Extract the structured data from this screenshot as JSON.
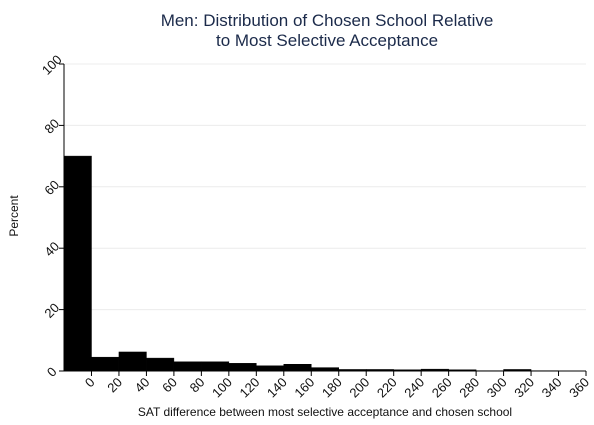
{
  "chart_data": {
    "type": "bar",
    "title": [
      "Men: Distribution of Chosen School Relative",
      "to Most Selective Acceptance"
    ],
    "xlabel": "SAT difference between most selective acceptance and chosen school",
    "ylabel": "Percent",
    "ylim": [
      0,
      100
    ],
    "yticks": [
      0,
      20,
      40,
      60,
      80,
      100
    ],
    "xticks": [
      "0",
      "20",
      "40",
      "60",
      "80",
      "100",
      "120",
      "140",
      "160",
      "180",
      "200",
      "220",
      "240",
      "260",
      "280",
      "300",
      "320",
      "340",
      "360"
    ],
    "grid": true,
    "legend": "none",
    "bar_color": "#000000",
    "title_color": "#1b2a4a",
    "bars": [
      {
        "bin_start": 0,
        "value": 70
      },
      {
        "bin_start": 20,
        "value": 4.5
      },
      {
        "bin_start": 40,
        "value": 6.2
      },
      {
        "bin_start": 60,
        "value": 4.2
      },
      {
        "bin_start": 80,
        "value": 3.0
      },
      {
        "bin_start": 100,
        "value": 3.0
      },
      {
        "bin_start": 120,
        "value": 2.5
      },
      {
        "bin_start": 140,
        "value": 1.7
      },
      {
        "bin_start": 160,
        "value": 2.2
      },
      {
        "bin_start": 180,
        "value": 1.1
      },
      {
        "bin_start": 200,
        "value": 0.5
      },
      {
        "bin_start": 220,
        "value": 0.5
      },
      {
        "bin_start": 240,
        "value": 0.4
      },
      {
        "bin_start": 260,
        "value": 0.6
      },
      {
        "bin_start": 280,
        "value": 0.4
      },
      {
        "bin_start": 300,
        "value": 0.1
      },
      {
        "bin_start": 320,
        "value": 0.5
      },
      {
        "bin_start": 340,
        "value": 0.1
      }
    ]
  }
}
